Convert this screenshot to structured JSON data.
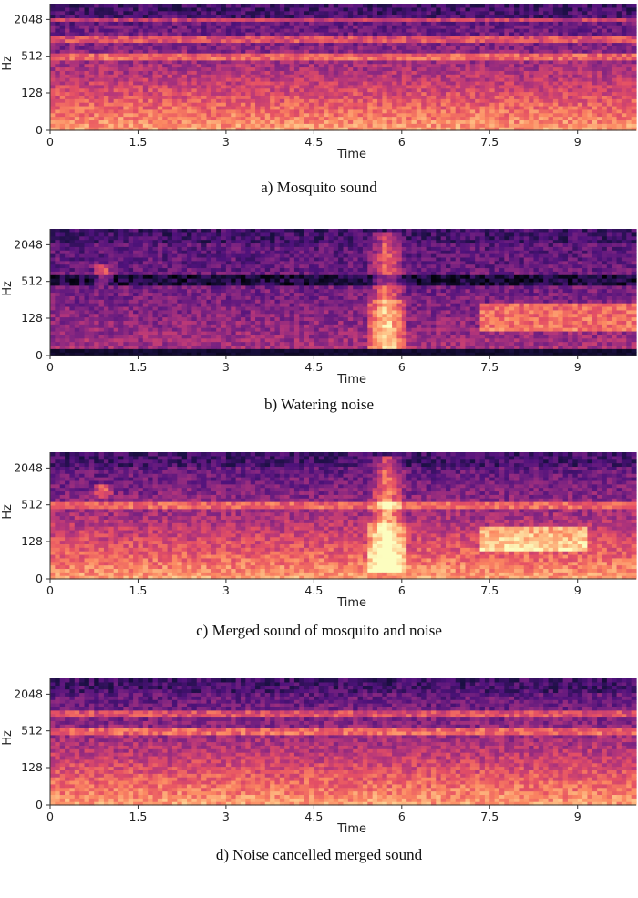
{
  "chart_data": [
    {
      "type": "heatmap",
      "caption": "a) Mosquito sound",
      "xlabel": "Time",
      "ylabel": "Hz",
      "x_ticks": [
        "0",
        "1.5",
        "3",
        "4.5",
        "6",
        "7.5",
        "9"
      ],
      "y_ticks": [
        "0",
        "128",
        "512",
        "2048"
      ],
      "xlim": [
        0,
        10
      ],
      "colormap": "magma",
      "features": {
        "tones_hz": [
          512,
          1000,
          2048
        ],
        "low_energy": "strong",
        "high_energy": "moderate",
        "bursts": []
      }
    },
    {
      "type": "heatmap",
      "caption": "b) Watering noise",
      "xlabel": "Time",
      "ylabel": "Hz",
      "x_ticks": [
        "0",
        "1.5",
        "3",
        "4.5",
        "6",
        "7.5",
        "9"
      ],
      "y_ticks": [
        "0",
        "128",
        "512",
        "2048"
      ],
      "xlim": [
        0,
        10
      ],
      "colormap": "magma",
      "features": {
        "tones_hz": [],
        "low_energy": "weak",
        "high_energy": "weak",
        "dark_band_hz": 560,
        "dark_floor": true,
        "bursts": [
          {
            "t": 5.75,
            "hz_low": 30,
            "hz_high": 3500,
            "width": 0.35
          },
          {
            "t": 0.9,
            "hz_low": 450,
            "hz_high": 1000,
            "width": 0.2
          }
        ],
        "harmonic_region": {
          "t_start": 7.3,
          "t_end": 10,
          "hz_low": 90,
          "hz_high": 230
        }
      }
    },
    {
      "type": "heatmap",
      "caption": "c) Merged sound of mosquito and noise",
      "xlabel": "Time",
      "ylabel": "Hz",
      "x_ticks": [
        "0",
        "1.5",
        "3",
        "4.5",
        "6",
        "7.5",
        "9"
      ],
      "y_ticks": [
        "0",
        "128",
        "512",
        "2048"
      ],
      "xlim": [
        0,
        10
      ],
      "colormap": "magma",
      "features": {
        "tones_hz": [
          512
        ],
        "low_energy": "strong",
        "high_energy": "moderate",
        "bursts": [
          {
            "t": 5.75,
            "hz_low": 30,
            "hz_high": 3500,
            "width": 0.35
          },
          {
            "t": 0.9,
            "hz_low": 700,
            "hz_high": 1100,
            "width": 0.2
          }
        ],
        "harmonic_region": {
          "t_start": 7.3,
          "t_end": 9.2,
          "hz_low": 100,
          "hz_high": 220
        }
      }
    },
    {
      "type": "heatmap",
      "caption": "d) Noise cancelled merged sound",
      "xlabel": "Time",
      "ylabel": "Hz",
      "x_ticks": [
        "0",
        "1.5",
        "3",
        "4.5",
        "6",
        "7.5",
        "9"
      ],
      "y_ticks": [
        "0",
        "128",
        "512",
        "2048"
      ],
      "xlim": [
        0,
        10
      ],
      "colormap": "magma",
      "features": {
        "tones_hz": [
          512,
          1000
        ],
        "low_energy": "strong",
        "high_energy": "moderate",
        "bursts": []
      }
    }
  ]
}
